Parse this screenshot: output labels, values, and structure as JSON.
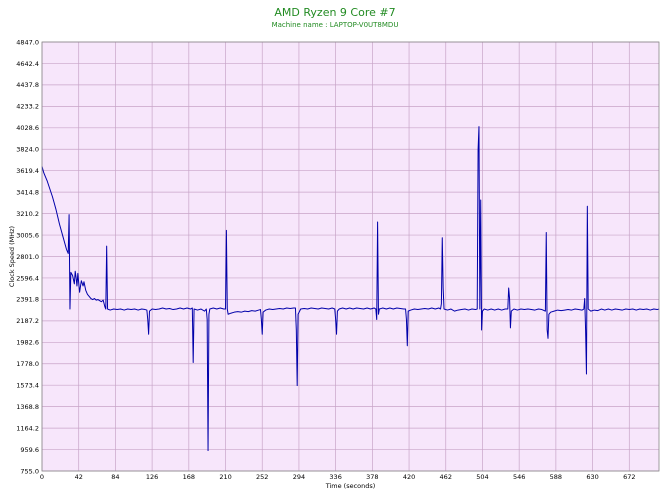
{
  "chart_data": {
    "type": "line",
    "title": "AMD Ryzen 9 Core #7",
    "subtitle": "Machine name : LAPTOP-V0UT8MDU",
    "xlabel": "Time (seconds)",
    "ylabel": "Clock Speed (MHz)",
    "xlim": [
      0,
      706
    ],
    "ylim": [
      755.0,
      4847.0
    ],
    "x_ticks": [
      0,
      42,
      84,
      126,
      168,
      210,
      252,
      294,
      336,
      378,
      420,
      462,
      504,
      546,
      588,
      630,
      672
    ],
    "y_ticks": [
      755.0,
      959.6,
      1164.2,
      1368.8,
      1573.4,
      1778.0,
      1982.6,
      2187.2,
      2391.8,
      2596.4,
      2801.0,
      3005.6,
      3210.2,
      3414.8,
      3619.4,
      3824.0,
      4028.6,
      4233.2,
      4437.8,
      4642.4,
      4847.0
    ],
    "grid": true,
    "colors": {
      "background": "#F7E6FB",
      "grid": "#C8A4C8",
      "line": "#0000AA",
      "title": "#228B22"
    },
    "series": [
      {
        "values": [
          [
            0,
            3660
          ],
          [
            2,
            3600
          ],
          [
            4,
            3560
          ],
          [
            6,
            3520
          ],
          [
            8,
            3470
          ],
          [
            10,
            3420
          ],
          [
            12,
            3370
          ],
          [
            14,
            3310
          ],
          [
            16,
            3250
          ],
          [
            18,
            3180
          ],
          [
            20,
            3110
          ],
          [
            22,
            3050
          ],
          [
            24,
            2990
          ],
          [
            26,
            2930
          ],
          [
            28,
            2870
          ],
          [
            30,
            2830
          ],
          [
            31,
            3200
          ],
          [
            32,
            2300
          ],
          [
            33,
            2650
          ],
          [
            35,
            2620
          ],
          [
            37,
            2540
          ],
          [
            38,
            2660
          ],
          [
            39,
            2600
          ],
          [
            40,
            2520
          ],
          [
            41,
            2640
          ],
          [
            42,
            2550
          ],
          [
            43,
            2460
          ],
          [
            45,
            2570
          ],
          [
            47,
            2520
          ],
          [
            48,
            2560
          ],
          [
            50,
            2480
          ],
          [
            52,
            2440
          ],
          [
            54,
            2420
          ],
          [
            56,
            2400
          ],
          [
            58,
            2390
          ],
          [
            60,
            2400
          ],
          [
            62,
            2385
          ],
          [
            64,
            2390
          ],
          [
            66,
            2380
          ],
          [
            68,
            2370
          ],
          [
            70,
            2385
          ],
          [
            72,
            2320
          ],
          [
            73,
            2300
          ],
          [
            74,
            2900
          ],
          [
            75,
            2300
          ],
          [
            78,
            2290
          ],
          [
            82,
            2300
          ],
          [
            86,
            2295
          ],
          [
            90,
            2300
          ],
          [
            94,
            2290
          ],
          [
            98,
            2300
          ],
          [
            102,
            2295
          ],
          [
            106,
            2300
          ],
          [
            110,
            2290
          ],
          [
            114,
            2300
          ],
          [
            118,
            2295
          ],
          [
            120,
            2290
          ],
          [
            121,
            2200
          ],
          [
            122,
            2060
          ],
          [
            123,
            2280
          ],
          [
            126,
            2300
          ],
          [
            130,
            2295
          ],
          [
            134,
            2300
          ],
          [
            138,
            2310
          ],
          [
            142,
            2300
          ],
          [
            146,
            2305
          ],
          [
            150,
            2295
          ],
          [
            154,
            2300
          ],
          [
            158,
            2310
          ],
          [
            162,
            2300
          ],
          [
            166,
            2310
          ],
          [
            170,
            2300
          ],
          [
            172,
            2310
          ],
          [
            173,
            1790
          ],
          [
            174,
            2300
          ],
          [
            178,
            2290
          ],
          [
            182,
            2300
          ],
          [
            186,
            2280
          ],
          [
            188,
            2300
          ],
          [
            189,
            2200
          ],
          [
            190,
            950
          ],
          [
            191,
            2250
          ],
          [
            192,
            2300
          ],
          [
            196,
            2310
          ],
          [
            200,
            2300
          ],
          [
            204,
            2310
          ],
          [
            208,
            2300
          ],
          [
            210,
            2300
          ],
          [
            211,
            3050
          ],
          [
            212,
            2300
          ],
          [
            213,
            2250
          ],
          [
            216,
            2260
          ],
          [
            220,
            2270
          ],
          [
            224,
            2275
          ],
          [
            228,
            2270
          ],
          [
            232,
            2280
          ],
          [
            236,
            2275
          ],
          [
            240,
            2285
          ],
          [
            244,
            2280
          ],
          [
            248,
            2290
          ],
          [
            250,
            2295
          ],
          [
            251,
            2200
          ],
          [
            252,
            2060
          ],
          [
            253,
            2270
          ],
          [
            256,
            2290
          ],
          [
            260,
            2300
          ],
          [
            264,
            2295
          ],
          [
            268,
            2300
          ],
          [
            272,
            2305
          ],
          [
            276,
            2300
          ],
          [
            280,
            2310
          ],
          [
            284,
            2305
          ],
          [
            288,
            2310
          ],
          [
            290,
            2310
          ],
          [
            291,
            2100
          ],
          [
            292,
            1570
          ],
          [
            293,
            2250
          ],
          [
            296,
            2300
          ],
          [
            300,
            2305
          ],
          [
            304,
            2300
          ],
          [
            308,
            2310
          ],
          [
            312,
            2305
          ],
          [
            316,
            2300
          ],
          [
            320,
            2310
          ],
          [
            324,
            2305
          ],
          [
            328,
            2300
          ],
          [
            332,
            2310
          ],
          [
            335,
            2300
          ],
          [
            336,
            2200
          ],
          [
            337,
            2060
          ],
          [
            338,
            2280
          ],
          [
            340,
            2300
          ],
          [
            344,
            2310
          ],
          [
            348,
            2300
          ],
          [
            352,
            2310
          ],
          [
            356,
            2300
          ],
          [
            360,
            2310
          ],
          [
            364,
            2305
          ],
          [
            368,
            2300
          ],
          [
            372,
            2310
          ],
          [
            376,
            2300
          ],
          [
            380,
            2310
          ],
          [
            382,
            2300
          ],
          [
            383,
            2200
          ],
          [
            384,
            3130
          ],
          [
            385,
            2250
          ],
          [
            386,
            2300
          ],
          [
            390,
            2310
          ],
          [
            394,
            2300
          ],
          [
            398,
            2310
          ],
          [
            402,
            2300
          ],
          [
            406,
            2310
          ],
          [
            410,
            2305
          ],
          [
            414,
            2300
          ],
          [
            416,
            2300
          ],
          [
            417,
            2200
          ],
          [
            418,
            1950
          ],
          [
            419,
            2280
          ],
          [
            422,
            2290
          ],
          [
            426,
            2300
          ],
          [
            430,
            2295
          ],
          [
            434,
            2300
          ],
          [
            438,
            2305
          ],
          [
            442,
            2300
          ],
          [
            446,
            2310
          ],
          [
            450,
            2300
          ],
          [
            454,
            2310
          ],
          [
            456,
            2300
          ],
          [
            457,
            2350
          ],
          [
            458,
            2980
          ],
          [
            459,
            2500
          ],
          [
            460,
            2300
          ],
          [
            464,
            2290
          ],
          [
            468,
            2300
          ],
          [
            472,
            2280
          ],
          [
            476,
            2290
          ],
          [
            480,
            2295
          ],
          [
            484,
            2300
          ],
          [
            488,
            2290
          ],
          [
            492,
            2300
          ],
          [
            496,
            2295
          ],
          [
            498,
            2300
          ],
          [
            499,
            3820
          ],
          [
            500,
            4040
          ],
          [
            501,
            2300
          ],
          [
            502,
            3340
          ],
          [
            503,
            2100
          ],
          [
            504,
            2280
          ],
          [
            506,
            2300
          ],
          [
            510,
            2290
          ],
          [
            514,
            2300
          ],
          [
            518,
            2290
          ],
          [
            522,
            2300
          ],
          [
            526,
            2290
          ],
          [
            530,
            2300
          ],
          [
            533,
            2300
          ],
          [
            534,
            2500
          ],
          [
            535,
            2400
          ],
          [
            536,
            2120
          ],
          [
            537,
            2280
          ],
          [
            540,
            2300
          ],
          [
            544,
            2290
          ],
          [
            548,
            2300
          ],
          [
            552,
            2295
          ],
          [
            556,
            2300
          ],
          [
            560,
            2295
          ],
          [
            564,
            2290
          ],
          [
            568,
            2300
          ],
          [
            572,
            2295
          ],
          [
            576,
            2280
          ],
          [
            577,
            3030
          ],
          [
            578,
            2100
          ],
          [
            579,
            2020
          ],
          [
            580,
            2250
          ],
          [
            582,
            2270
          ],
          [
            586,
            2280
          ],
          [
            590,
            2290
          ],
          [
            594,
            2285
          ],
          [
            598,
            2290
          ],
          [
            602,
            2295
          ],
          [
            606,
            2290
          ],
          [
            610,
            2300
          ],
          [
            614,
            2295
          ],
          [
            618,
            2290
          ],
          [
            620,
            2300
          ],
          [
            621,
            2400
          ],
          [
            622,
            2100
          ],
          [
            623,
            1680
          ],
          [
            624,
            3280
          ],
          [
            625,
            2300
          ],
          [
            628,
            2280
          ],
          [
            632,
            2290
          ],
          [
            636,
            2285
          ],
          [
            640,
            2300
          ],
          [
            644,
            2290
          ],
          [
            648,
            2300
          ],
          [
            652,
            2290
          ],
          [
            656,
            2300
          ],
          [
            660,
            2295
          ],
          [
            664,
            2290
          ],
          [
            668,
            2300
          ],
          [
            672,
            2295
          ],
          [
            676,
            2300
          ],
          [
            680,
            2290
          ],
          [
            684,
            2300
          ],
          [
            688,
            2295
          ],
          [
            692,
            2300
          ],
          [
            696,
            2290
          ],
          [
            700,
            2300
          ],
          [
            704,
            2295
          ],
          [
            706,
            2300
          ]
        ]
      }
    ]
  }
}
